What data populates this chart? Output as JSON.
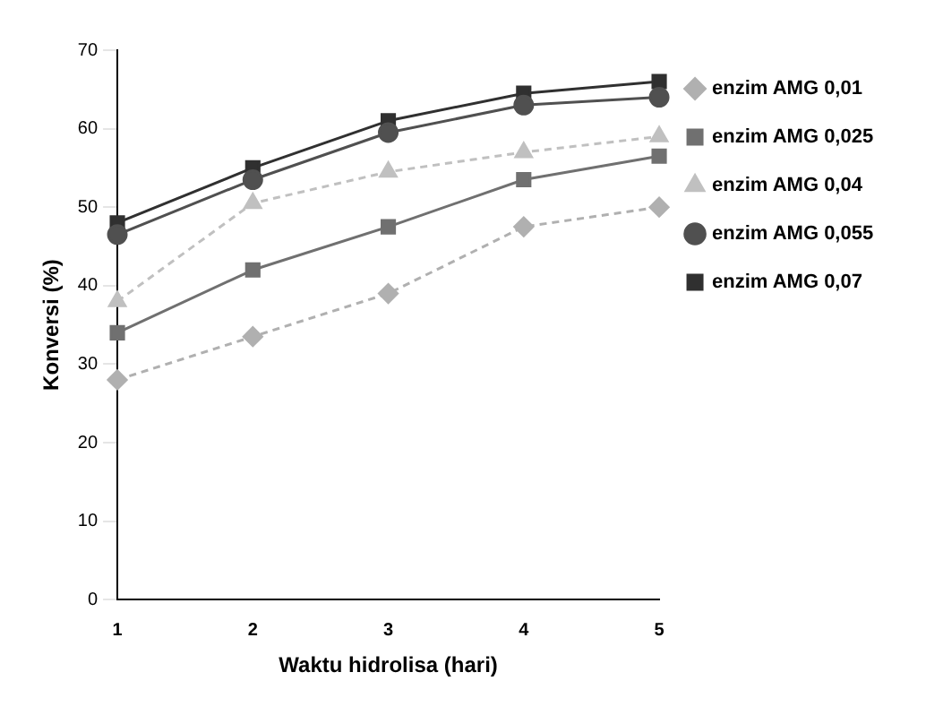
{
  "chart_data": {
    "type": "line",
    "xlabel": "Waktu hidrolisa (hari)",
    "ylabel": "Konversi (%)",
    "categories": [
      "1",
      "2",
      "3",
      "4",
      "5"
    ],
    "ylim": [
      0,
      70
    ],
    "yticks": [
      0,
      10,
      20,
      30,
      40,
      50,
      60,
      70
    ],
    "grid": false,
    "legend": "right",
    "series": [
      {
        "name": "enzim AMG 0,01",
        "color": "#b0b0b0",
        "marker": "diamond",
        "line_style": "dashed",
        "values": [
          28,
          33.5,
          39,
          47.5,
          50
        ]
      },
      {
        "name": "enzim AMG 0,025",
        "color": "#707070",
        "marker": "square",
        "values": [
          34,
          42,
          47.5,
          53.5,
          56.5
        ]
      },
      {
        "name": "enzim AMG 0,04",
        "color": "#c0c0c0",
        "marker": "triangle",
        "line_style": "dashed",
        "values": [
          38,
          50.5,
          54.5,
          57,
          59
        ]
      },
      {
        "name": "enzim AMG 0,055",
        "color": "#505050",
        "marker": "circle",
        "values": [
          46.5,
          53.5,
          59.5,
          63,
          64
        ]
      },
      {
        "name": "enzim AMG 0,07",
        "color": "#303030",
        "marker": "square",
        "values": [
          48,
          55,
          61,
          64.5,
          66
        ]
      }
    ]
  }
}
